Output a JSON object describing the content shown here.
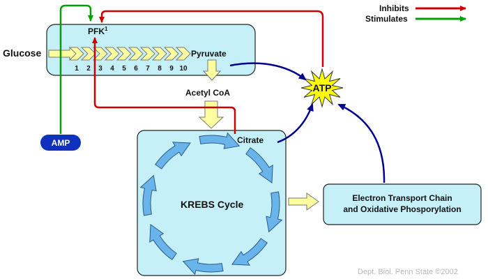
{
  "legend": {
    "inhibits": "Inhibits",
    "stimulates": "Stimulates",
    "inhibit_color": "#cc0000",
    "stimulate_color": "#00a000"
  },
  "glycolysis": {
    "input": "Glucose",
    "enzyme_label": "PFK",
    "enzyme_superscript": "1",
    "output": "Pyruvate",
    "steps": [
      "1",
      "2",
      "3",
      "4",
      "5",
      "6",
      "7",
      "8",
      "9",
      "10"
    ]
  },
  "acetyl_coa": "Acetyl CoA",
  "krebs": {
    "title": "KREBS Cycle",
    "citrate": "Citrate"
  },
  "etc": {
    "line1": "Electron Transport Chain",
    "line2": "and Oxidative Phosporylation"
  },
  "atp": "ATP",
  "amp": "AMP",
  "credit": "Dept. Biol. Penn State ©2002",
  "colors": {
    "box_fill": "#c6f0f8",
    "arrow_fill": "#ffffa0",
    "atp_fill": "#ffff00",
    "amp_fill": "#1030c0",
    "atp_arrows": "#000090",
    "cycle_arrows": "#6ab4ec"
  }
}
